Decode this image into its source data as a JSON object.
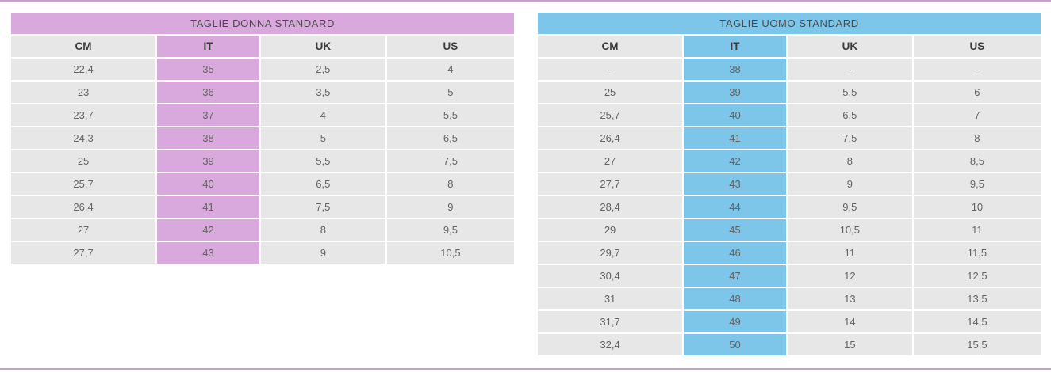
{
  "page": {
    "background_color": "#ffffff",
    "divider_color": "#c3a2c6",
    "row_color": "#e8e7e8"
  },
  "tables": [
    {
      "title": "TAGLIE DONNA STANDARD",
      "accent_color": "#d9a8dc",
      "columns": [
        "CM",
        "IT",
        "UK",
        "US"
      ],
      "highlight_column_index": 1,
      "rows": [
        [
          "22,4",
          "35",
          "2,5",
          "4"
        ],
        [
          "23",
          "36",
          "3,5",
          "5"
        ],
        [
          "23,7",
          "37",
          "4",
          "5,5"
        ],
        [
          "24,3",
          "38",
          "5",
          "6,5"
        ],
        [
          "25",
          "39",
          "5,5",
          "7,5"
        ],
        [
          "25,7",
          "40",
          "6,5",
          "8"
        ],
        [
          "26,4",
          "41",
          "7,5",
          "9"
        ],
        [
          "27",
          "42",
          "8",
          "9,5"
        ],
        [
          "27,7",
          "43",
          "9",
          "10,5"
        ]
      ]
    },
    {
      "title": "TAGLIE UOMO STANDARD",
      "accent_color": "#7dc6e9",
      "columns": [
        "CM",
        "IT",
        "UK",
        "US"
      ],
      "highlight_column_index": 1,
      "rows": [
        [
          "-",
          "38",
          "-",
          "-"
        ],
        [
          "25",
          "39",
          "5,5",
          "6"
        ],
        [
          "25,7",
          "40",
          "6,5",
          "7"
        ],
        [
          "26,4",
          "41",
          "7,5",
          "8"
        ],
        [
          "27",
          "42",
          "8",
          "8,5"
        ],
        [
          "27,7",
          "43",
          "9",
          "9,5"
        ],
        [
          "28,4",
          "44",
          "9,5",
          "10"
        ],
        [
          "29",
          "45",
          "10,5",
          "11"
        ],
        [
          "29,7",
          "46",
          "11",
          "11,5"
        ],
        [
          "30,4",
          "47",
          "12",
          "12,5"
        ],
        [
          "31",
          "48",
          "13",
          "13,5"
        ],
        [
          "31,7",
          "49",
          "14",
          "14,5"
        ],
        [
          "32,4",
          "50",
          "15",
          "15,5"
        ]
      ]
    }
  ]
}
